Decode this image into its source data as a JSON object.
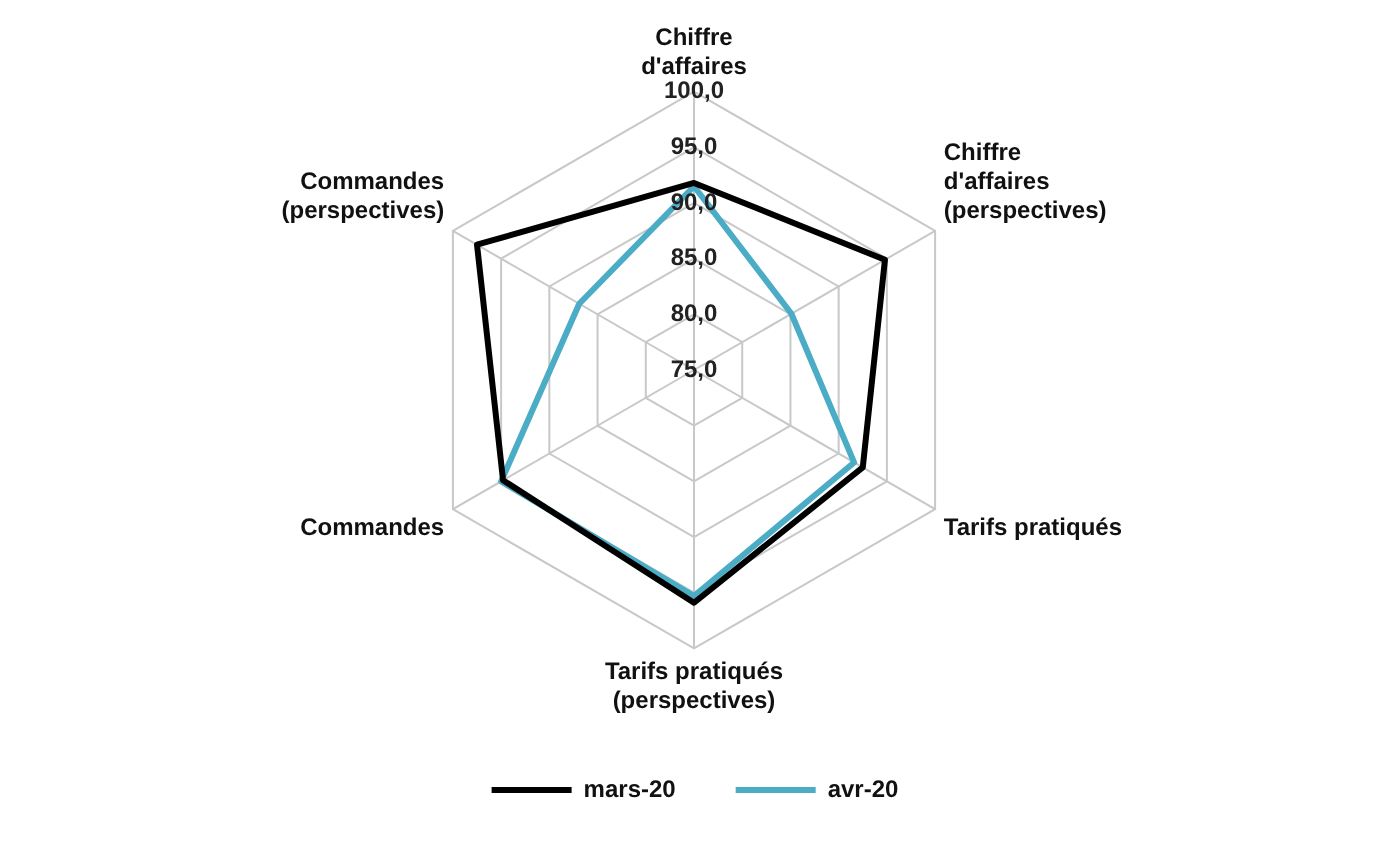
{
  "chart_data": {
    "type": "radar",
    "categories": [
      "Chiffre d'affaires",
      "Chiffre d'affaires (perspectives)",
      "Tarifs pratiqués",
      "Tarifs pratiqués (perspectives)",
      "Commandes",
      "Commandes (perspectives)"
    ],
    "series": [
      {
        "name": "mars-20",
        "color": "#000000",
        "values": [
          91.8,
          94.8,
          92.5,
          95.9,
          94.8,
          97.5
        ]
      },
      {
        "name": "avr-20",
        "color": "#4bacc6",
        "values": [
          91.5,
          85.1,
          91.6,
          95.3,
          95.0,
          86.9
        ]
      }
    ],
    "ylim": [
      75,
      100
    ],
    "yticks": [
      {
        "value": 75,
        "label": "75,0"
      },
      {
        "value": 80,
        "label": "80,0"
      },
      {
        "value": 85,
        "label": "85,0"
      },
      {
        "value": 90,
        "label": "90,0"
      },
      {
        "value": 95,
        "label": "95,0"
      },
      {
        "value": 100,
        "label": "100,0"
      }
    ],
    "grid": true,
    "legend": "bottom",
    "marker": "none",
    "line_style": "solid"
  }
}
